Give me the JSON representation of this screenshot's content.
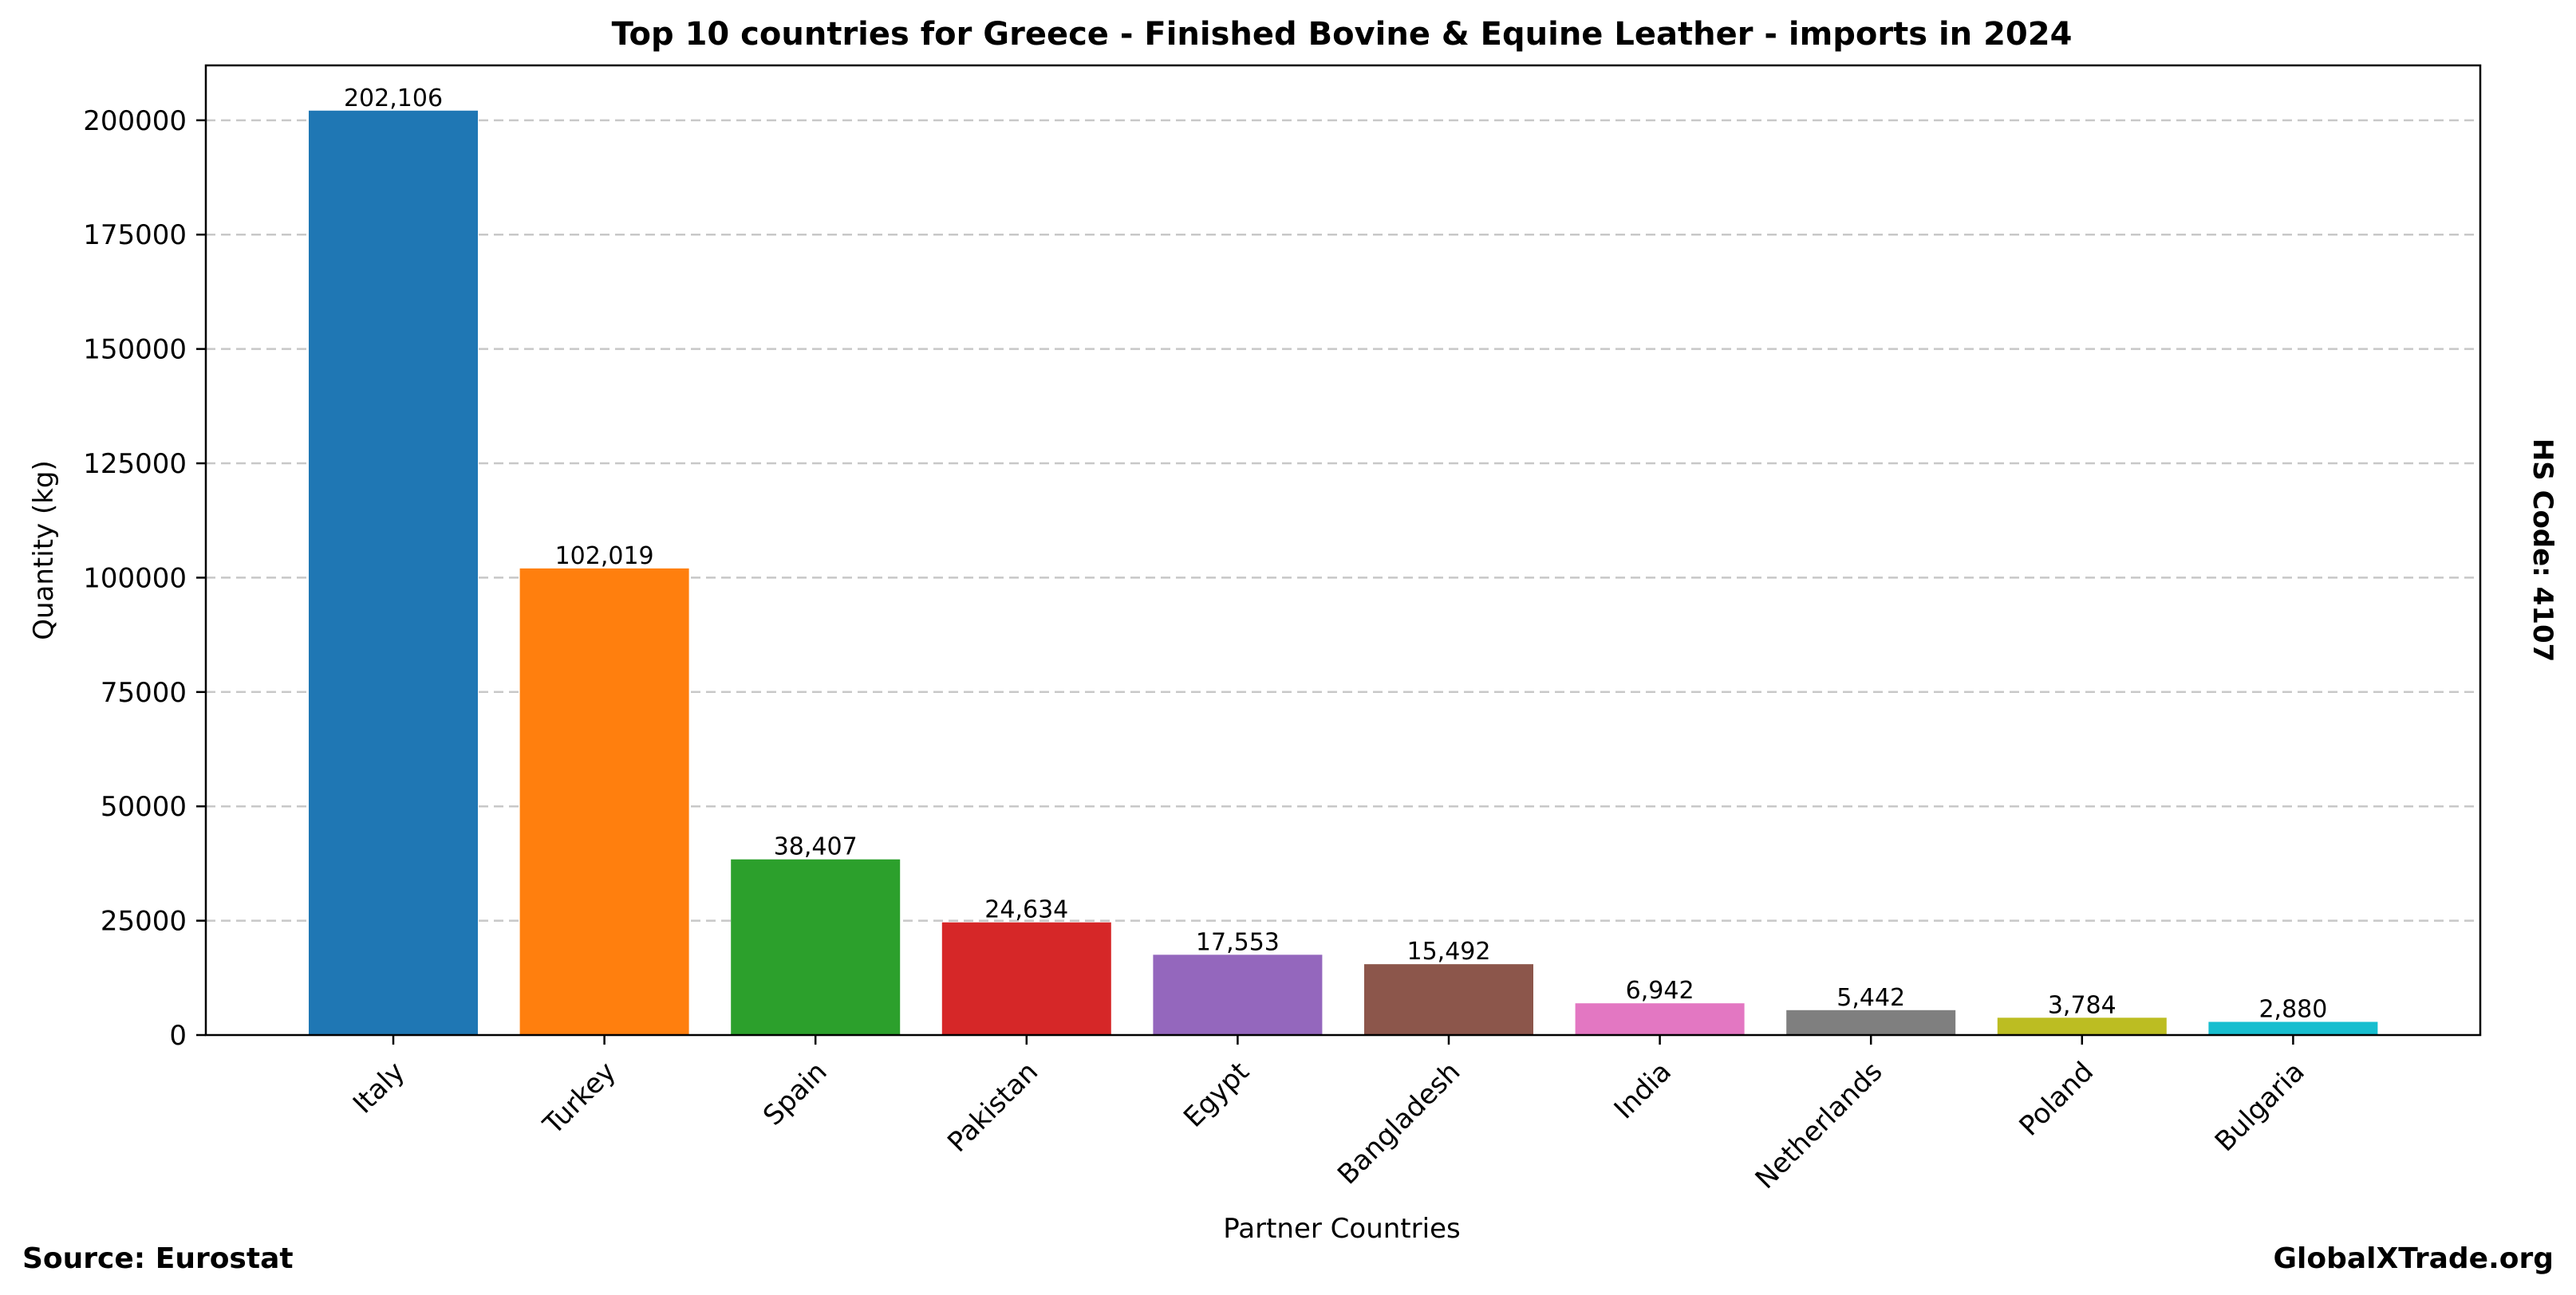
{
  "chart_data": {
    "type": "bar",
    "title": "Top 10 countries for Greece - Finished Bovine & Equine Leather - imports in 2024",
    "xlabel": "Partner Countries",
    "ylabel": "Quantity (kg)",
    "categories": [
      "Italy",
      "Turkey",
      "Spain",
      "Pakistan",
      "Egypt",
      "Bangladesh",
      "India",
      "Netherlands",
      "Poland",
      "Bulgaria"
    ],
    "values": [
      202106,
      102019,
      38407,
      24634,
      17553,
      15492,
      6942,
      5442,
      3784,
      2880
    ],
    "value_labels": [
      "202,106",
      "102,019",
      "38,407",
      "24,634",
      "17,553",
      "15,492",
      "6,942",
      "5,442",
      "3,784",
      "2,880"
    ],
    "colors": [
      "#1f77b4",
      "#ff7f0e",
      "#2ca02c",
      "#d62728",
      "#9467bd",
      "#8c564b",
      "#e377c2",
      "#7f7f7f",
      "#bcbd22",
      "#17becf"
    ],
    "ylim": [
      0,
      212000
    ],
    "yticks": [
      0,
      25000,
      50000,
      75000,
      100000,
      125000,
      150000,
      175000,
      200000
    ],
    "grid": "y-dashed",
    "legend": "none"
  },
  "footer": {
    "source": "Source: Eurostat",
    "brand": "GlobalXTrade.org"
  },
  "side_note": "HS Code: 4107"
}
